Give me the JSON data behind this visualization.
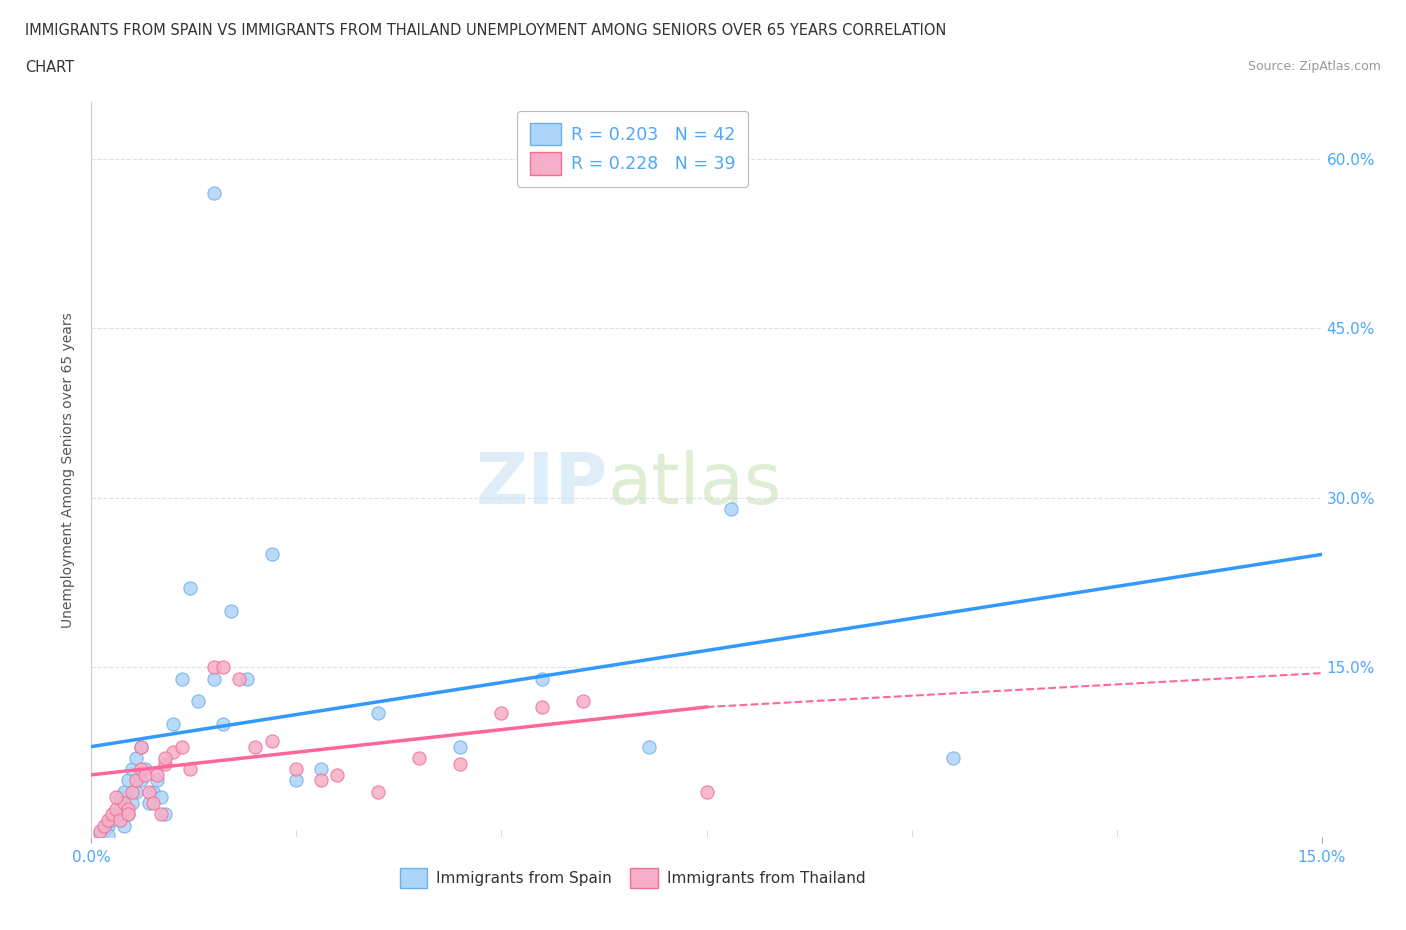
{
  "title_line1": "IMMIGRANTS FROM SPAIN VS IMMIGRANTS FROM THAILAND UNEMPLOYMENT AMONG SENIORS OVER 65 YEARS CORRELATION",
  "title_line2": "CHART",
  "source_text": "Source: ZipAtlas.com",
  "ylabel": "Unemployment Among Seniors over 65 years",
  "watermark_zip": "ZIP",
  "watermark_atlas": "atlas",
  "ytick_right_labels": [
    "15.0%",
    "30.0%",
    "45.0%",
    "60.0%"
  ],
  "ytick_right_values": [
    15,
    30,
    45,
    60
  ],
  "xlim": [
    0,
    15
  ],
  "ylim": [
    0,
    65
  ],
  "legend_entries": [
    {
      "label": "R = 0.203   N = 42",
      "facecolor": "#aed4f7",
      "edgecolor": "#6bb0f0"
    },
    {
      "label": "R = 0.228   N = 39",
      "facecolor": "#f7aec8",
      "edgecolor": "#f07090"
    }
  ],
  "legend_bottom": [
    {
      "label": "Immigrants from Spain",
      "facecolor": "#aed4f7",
      "edgecolor": "#6bb0f0"
    },
    {
      "label": "Immigrants from Thailand",
      "facecolor": "#f7aec8",
      "edgecolor": "#f07090"
    }
  ],
  "spain_scatter_x": [
    0.15,
    0.2,
    0.25,
    0.3,
    0.35,
    0.35,
    0.4,
    0.4,
    0.45,
    0.45,
    0.5,
    0.5,
    0.55,
    0.55,
    0.6,
    0.6,
    0.65,
    0.7,
    0.75,
    0.8,
    0.85,
    0.9,
    1.0,
    1.1,
    1.2,
    1.3,
    1.5,
    1.6,
    1.7,
    1.9,
    2.2,
    2.5,
    2.8,
    3.5,
    4.5,
    5.5,
    6.8,
    7.8,
    10.5,
    0.1,
    0.2,
    1.5
  ],
  "spain_scatter_y": [
    0.5,
    1.0,
    1.5,
    2.0,
    2.5,
    3.5,
    1.0,
    4.0,
    2.0,
    5.0,
    3.0,
    6.0,
    4.0,
    7.0,
    5.0,
    8.0,
    6.0,
    3.0,
    4.0,
    5.0,
    3.5,
    2.0,
    10.0,
    14.0,
    22.0,
    12.0,
    14.0,
    10.0,
    20.0,
    14.0,
    25.0,
    5.0,
    6.0,
    11.0,
    8.0,
    14.0,
    8.0,
    29.0,
    7.0,
    0.3,
    0.2,
    57.0
  ],
  "thailand_scatter_x": [
    0.1,
    0.15,
    0.2,
    0.25,
    0.3,
    0.35,
    0.4,
    0.45,
    0.5,
    0.55,
    0.6,
    0.65,
    0.7,
    0.75,
    0.8,
    0.85,
    0.9,
    1.0,
    1.1,
    1.2,
    1.5,
    1.6,
    1.8,
    2.0,
    2.2,
    2.5,
    2.8,
    3.0,
    3.5,
    4.0,
    4.5,
    5.0,
    5.5,
    6.0,
    7.5,
    0.3,
    0.45,
    0.6,
    0.9
  ],
  "thailand_scatter_y": [
    0.5,
    1.0,
    1.5,
    2.0,
    2.5,
    1.5,
    3.0,
    2.5,
    4.0,
    5.0,
    6.0,
    5.5,
    4.0,
    3.0,
    5.5,
    2.0,
    6.5,
    7.5,
    8.0,
    6.0,
    15.0,
    15.0,
    14.0,
    8.0,
    8.5,
    6.0,
    5.0,
    5.5,
    4.0,
    7.0,
    6.5,
    11.0,
    11.5,
    12.0,
    4.0,
    3.5,
    2.0,
    8.0,
    7.0
  ],
  "spain_trendline": {
    "x": [
      0,
      15
    ],
    "y": [
      8.0,
      25.0
    ]
  },
  "thailand_trendline_solid": {
    "x": [
      0,
      7.5
    ],
    "y": [
      5.5,
      11.5
    ]
  },
  "thailand_trendline_dashed": {
    "x": [
      7.5,
      15
    ],
    "y": [
      11.5,
      14.5
    ]
  },
  "spain_line_color": "#3399ff",
  "spain_scatter_face": "#aed4f7",
  "spain_scatter_edge": "#6bb0f0",
  "thailand_line_color": "#ff6699",
  "thailand_scatter_face": "#f7aec8",
  "thailand_scatter_edge": "#f07090",
  "grid_color": "#cccccc",
  "label_color": "#4da6ff",
  "title_color": "#333333",
  "source_color": "#999999",
  "background_color": "#ffffff",
  "ylabel_color": "#555555"
}
